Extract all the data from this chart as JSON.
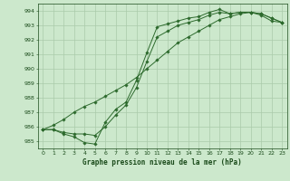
{
  "line1_x": [
    0,
    1,
    2,
    3,
    4,
    5,
    6,
    7,
    8,
    9,
    10,
    11,
    12,
    13,
    14,
    15,
    16,
    17,
    18,
    19,
    20,
    21,
    22,
    23
  ],
  "line1_y": [
    985.8,
    985.8,
    985.5,
    985.3,
    984.9,
    984.8,
    986.3,
    987.2,
    987.7,
    989.2,
    991.1,
    992.9,
    993.1,
    993.3,
    993.5,
    993.6,
    993.9,
    994.1,
    993.8,
    993.9,
    993.9,
    993.8,
    993.5,
    993.2
  ],
  "line2_x": [
    0,
    1,
    2,
    3,
    4,
    5,
    6,
    7,
    8,
    9,
    10,
    11,
    12,
    13,
    14,
    15,
    16,
    17,
    18,
    19,
    20,
    21,
    22,
    23
  ],
  "line2_y": [
    985.8,
    985.8,
    985.6,
    985.5,
    985.5,
    985.4,
    986.0,
    986.8,
    987.5,
    988.7,
    990.5,
    992.2,
    992.6,
    993.0,
    993.2,
    993.4,
    993.7,
    993.9,
    993.8,
    993.9,
    993.9,
    993.8,
    993.5,
    993.2
  ],
  "line3_x": [
    0,
    1,
    2,
    3,
    4,
    5,
    6,
    7,
    8,
    9,
    10,
    11,
    12,
    13,
    14,
    15,
    16,
    17,
    18,
    19,
    20,
    21,
    22,
    23
  ],
  "line3_y": [
    985.8,
    986.1,
    986.5,
    987.0,
    987.4,
    987.7,
    988.1,
    988.5,
    988.9,
    989.4,
    990.0,
    990.6,
    991.2,
    991.8,
    992.2,
    992.6,
    993.0,
    993.4,
    993.6,
    993.8,
    993.9,
    993.7,
    993.3,
    993.2
  ],
  "line_color": "#2d6a2d",
  "bg_color": "#cce8cc",
  "grid_color": "#aacaaa",
  "xlabel": "Graphe pression niveau de la mer (hPa)",
  "xlabel_color": "#1a4a1a",
  "tick_color": "#1a4a1a",
  "ylim": [
    984.5,
    994.5
  ],
  "xlim": [
    -0.5,
    23.5
  ],
  "yticks": [
    985,
    986,
    987,
    988,
    989,
    990,
    991,
    992,
    993,
    994
  ],
  "xticks": [
    0,
    1,
    2,
    3,
    4,
    5,
    6,
    7,
    8,
    9,
    10,
    11,
    12,
    13,
    14,
    15,
    16,
    17,
    18,
    19,
    20,
    21,
    22,
    23
  ]
}
